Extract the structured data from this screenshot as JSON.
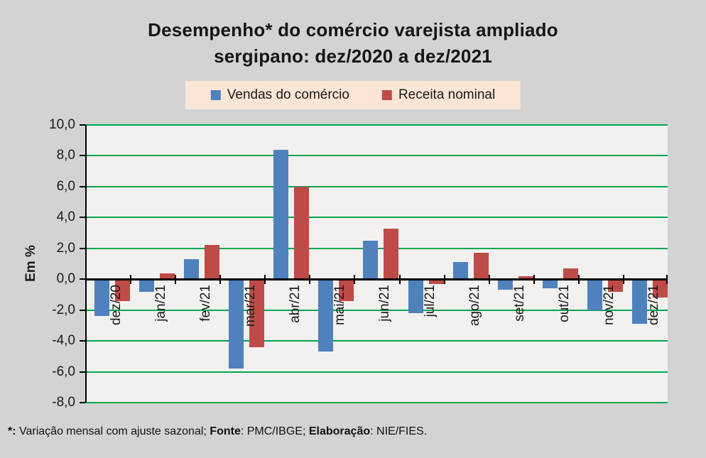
{
  "title": {
    "line1": "Desempenho* do comércio varejista ampliado",
    "line2": "sergipano: dez/2020 a dez/2021"
  },
  "legend": {
    "background": "#FBE5D6"
  },
  "y_axis": {
    "label": "Em %",
    "ticks": [
      "10,0",
      "8,0",
      "6,0",
      "4,0",
      "2,0",
      "0,0",
      "-2,0",
      "-4,0",
      "-6,0",
      "-8,0"
    ]
  },
  "footnote": {
    "star_bold": "*:",
    "text1": " Variação mensal com ajuste sazonal; ",
    "fonte_bold": "Fonte",
    "text2": ": PMC/IBGE; ",
    "elab_bold": "Elaboração",
    "text3": ": NIE/FIES."
  },
  "chart_data": {
    "type": "bar",
    "title": "Desempenho* do comércio varejista ampliado sergipano: dez/2020 a dez/2021",
    "ylabel": "Em %",
    "ylim": [
      -8,
      10
    ],
    "ytick_step": 2,
    "grid": true,
    "gridline_color": "#00A550",
    "plot_background": "#F2F1EF",
    "figure_background": "#D3D3D3",
    "legend_position": "top",
    "categories": [
      "dez/20",
      "jan/21",
      "fev/21",
      "mar/21",
      "abr/21",
      "mai/21",
      "jun/21",
      "jul/21",
      "ago/21",
      "set/21",
      "out/21",
      "nov/21",
      "dez/21"
    ],
    "series": [
      {
        "name": "Vendas do comércio",
        "color": "#4F81BD",
        "values": [
          -2.4,
          -0.8,
          1.3,
          -5.8,
          8.4,
          -4.7,
          2.5,
          -2.2,
          1.1,
          -0.7,
          -0.6,
          -2.0,
          -2.9
        ]
      },
      {
        "name": "Receita nominal",
        "color": "#BE4B48",
        "values": [
          -1.4,
          0.4,
          2.2,
          -4.4,
          6.0,
          -1.4,
          3.3,
          -0.3,
          1.7,
          0.2,
          0.7,
          -0.8,
          -1.2
        ]
      }
    ]
  }
}
